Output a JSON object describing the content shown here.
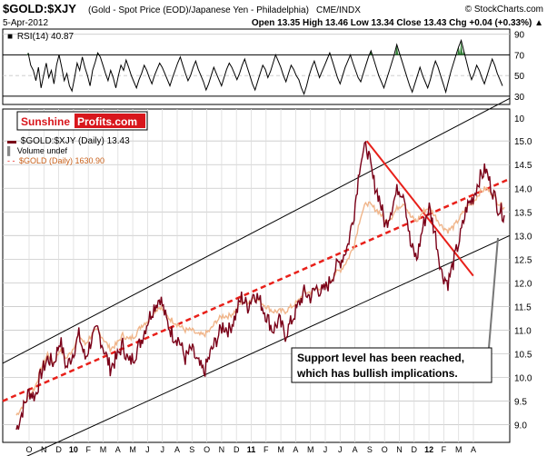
{
  "header": {
    "symbol": "$GOLD:$XJY",
    "description": "(Gold - Spot Price (EOD)/Japanese Yen - Philadelphia)",
    "exchange": "CME/INDX",
    "brand": "© StockCharts.com",
    "date": "5-Apr-2012",
    "ohlc_text": "Open 13.35  High 13.46  Low 13.34  Close 13.43  Chg +0.04 (+0.33%) ▲"
  },
  "logo": {
    "part1": "Sunshine",
    "part2": "Profits.com"
  },
  "rsi": {
    "label": "RSI(14) 40.87",
    "levels": [
      70,
      30
    ],
    "ticks": [
      90,
      70,
      50,
      30
    ],
    "ylim": [
      22,
      95
    ],
    "values": [
      72,
      60,
      55,
      45,
      58,
      38,
      50,
      62,
      48,
      55,
      42,
      60,
      70,
      58,
      45,
      52,
      40,
      35,
      48,
      62,
      55,
      68,
      58,
      50,
      40,
      55,
      63,
      72,
      68,
      60,
      52,
      45,
      55,
      48,
      38,
      50,
      60,
      55,
      65,
      58,
      50,
      44,
      38,
      46,
      52,
      60,
      55,
      48,
      42,
      50,
      56,
      62,
      58,
      52,
      46,
      40,
      48,
      55,
      62,
      68,
      60,
      52,
      45,
      50,
      58,
      64,
      56,
      50,
      44,
      36,
      42,
      50,
      58,
      52,
      46,
      40,
      48,
      56,
      62,
      58,
      52,
      46,
      52,
      60,
      66,
      58,
      50,
      42,
      36,
      44,
      52,
      60,
      56,
      48,
      54,
      62,
      70,
      64,
      58,
      50,
      44,
      52,
      60,
      56,
      50,
      46,
      38,
      32,
      40,
      50,
      58,
      64,
      56,
      48,
      54,
      60,
      66,
      72,
      64,
      56,
      48,
      42,
      50,
      58,
      64,
      70,
      62,
      55,
      48,
      44,
      52,
      60,
      68,
      74,
      66,
      58,
      50,
      44,
      38,
      46,
      54,
      62,
      70,
      80,
      72,
      64,
      56,
      48,
      40,
      34,
      42,
      50,
      58,
      50,
      44,
      38,
      46,
      56,
      64,
      58,
      50,
      42,
      34,
      44,
      54,
      62,
      70,
      78,
      84,
      74,
      64,
      54,
      46,
      52,
      60,
      55,
      48,
      42,
      50,
      58,
      66,
      60,
      52,
      46,
      40
    ]
  },
  "main": {
    "legend_symbol": "$GOLD:$XJY (Daily) 13.43",
    "legend_volume": "Volume undef",
    "legend_gold": "$GOLD (Daily) 1630.90"
  },
  "annotation": {
    "line1": "Support level has been reached,",
    "line2": "which has bullish implications."
  },
  "colors": {
    "price": "#7a0018",
    "gold": "#f0b58a",
    "trend": "#e8201a",
    "rsi_fill": "#2e7d32",
    "grid": "#c8c8c8"
  },
  "chart_data": {
    "type": "line",
    "title": "$GOLD:$XJY (Daily) 13.43",
    "ylabel": "",
    "ylim": [
      8.8,
      15.1
    ],
    "y_ticks": [
      9.0,
      9.5,
      10.0,
      10.5,
      11.0,
      11.5,
      12.0,
      12.5,
      13.0,
      13.5,
      14.0,
      14.5,
      15.0
    ],
    "x_ticks": [
      "O",
      "N",
      "D",
      "10",
      "F",
      "M",
      "A",
      "M",
      "J",
      "J",
      "A",
      "S",
      "O",
      "N",
      "D",
      "11",
      "F",
      "M",
      "A",
      "M",
      "J",
      "J",
      "A",
      "S",
      "O",
      "N",
      "D",
      "12",
      "F",
      "M",
      "A"
    ],
    "series": [
      {
        "name": "$GOLD:$XJY (Daily) 13.43",
        "values": [
          8.9,
          9.3,
          9.7,
          9.6,
          10.1,
          10.4,
          10.3,
          10.8,
          10.2,
          10.5,
          10.9,
          10.4,
          10.8,
          11.0,
          10.6,
          10.2,
          10.4,
          10.7,
          10.3,
          10.5,
          10.8,
          11.2,
          11.5,
          11.7,
          11.2,
          10.9,
          10.8,
          10.4,
          10.6,
          10.3,
          10.1,
          10.5,
          10.8,
          11.1,
          11.0,
          11.3,
          11.7,
          11.5,
          11.8,
          11.6,
          11.3,
          11.0,
          11.2,
          10.9,
          11.2,
          11.5,
          11.8,
          11.7,
          11.9,
          11.8,
          12.0,
          12.3,
          12.5,
          12.8,
          13.5,
          14.6,
          14.9,
          14.2,
          13.8,
          13.2,
          13.6,
          14.0,
          13.9,
          12.8,
          12.5,
          13.2,
          13.6,
          13.0,
          12.2,
          12.0,
          12.5,
          13.0,
          13.6,
          13.8,
          14.2,
          14.4,
          14.0,
          13.6,
          13.43
        ]
      },
      {
        "name": "$GOLD (Daily) 1630.90",
        "values": [
          9.2,
          9.4,
          9.6,
          9.8,
          10.2,
          10.5,
          10.3,
          10.6,
          10.4,
          10.6,
          10.9,
          10.7,
          10.9,
          11.0,
          10.8,
          10.6,
          10.7,
          10.9,
          10.8,
          10.9,
          11.1,
          11.2,
          11.4,
          11.5,
          11.3,
          11.2,
          11.1,
          11.0,
          11.0,
          10.9,
          10.9,
          11.0,
          11.2,
          11.3,
          11.3,
          11.4,
          11.6,
          11.6,
          11.7,
          11.6,
          11.5,
          11.4,
          11.4,
          11.4,
          11.5,
          11.6,
          11.8,
          11.8,
          11.9,
          11.9,
          12.0,
          12.2,
          12.3,
          12.5,
          12.8,
          13.4,
          13.7,
          13.6,
          13.5,
          13.3,
          13.4,
          13.6,
          13.7,
          13.4,
          13.3,
          13.5,
          13.6,
          13.4,
          13.2,
          13.1,
          13.2,
          13.4,
          13.6,
          13.7,
          13.9,
          14.0,
          13.9,
          13.7,
          13.6
        ]
      }
    ],
    "channel_top": {
      "start": 10.3,
      "end": 15.9
    },
    "channel_mid": {
      "start": 9.5,
      "end": 14.2
    },
    "channel_bottom": {
      "start": 8.1,
      "end": 13.0
    },
    "downtrend": {
      "from": [
        0.718,
        15.0
      ],
      "to": [
        0.928,
        12.15
      ]
    },
    "right_axis_top_label": "10",
    "legend": "top-left",
    "grid": true
  }
}
